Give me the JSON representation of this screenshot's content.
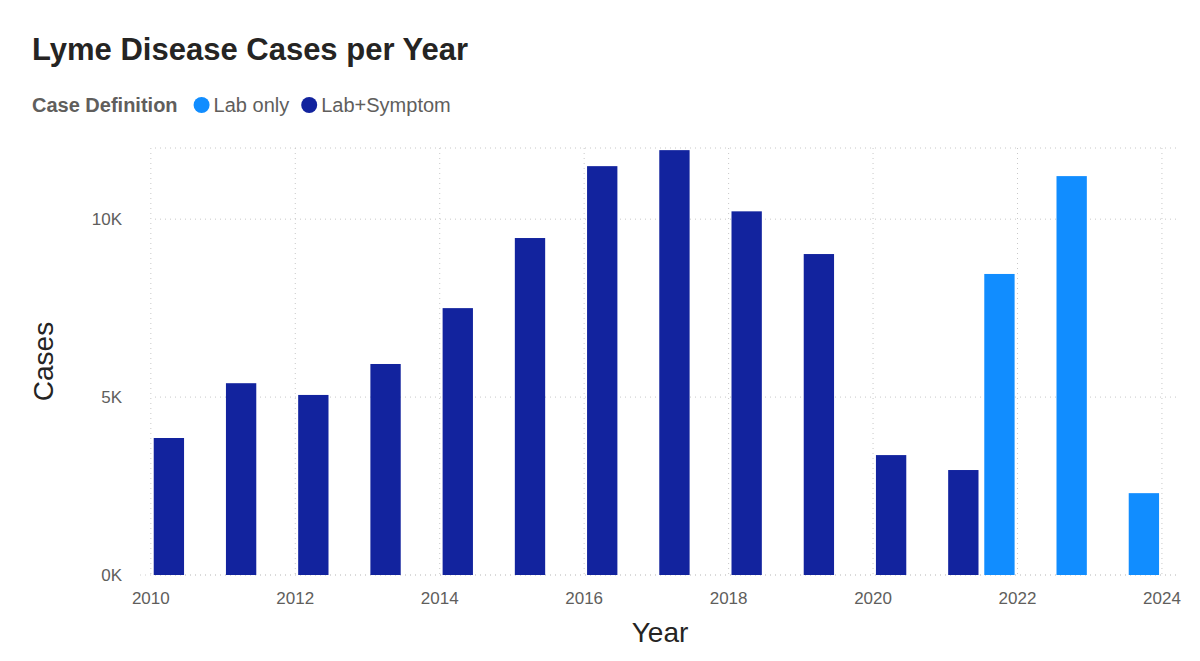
{
  "chart_data": {
    "type": "bar",
    "title": "Lyme Disease Cases per Year",
    "legend_title": "Case Definition",
    "legend": "top-left",
    "x_label": "Year",
    "y_label": "Cases",
    "x": [
      2010,
      2011,
      2012,
      2013,
      2014,
      2015,
      2016,
      2017,
      2018,
      2019,
      2020,
      2021,
      2022,
      2023,
      2024
    ],
    "series": [
      {
        "name": "Lab only",
        "color": "#118dff",
        "values": [
          null,
          null,
          null,
          null,
          null,
          null,
          null,
          null,
          null,
          null,
          null,
          null,
          8460,
          11210,
          2300
        ]
      },
      {
        "name": "Lab+Symptom",
        "color": "#12239e",
        "values": [
          3850,
          5390,
          5060,
          5930,
          7500,
          9470,
          11490,
          11940,
          10220,
          9020,
          3370,
          2950,
          null,
          null,
          null
        ]
      }
    ],
    "xlim": [
      2009.85,
      2024.25
    ],
    "xticks": [
      2010,
      2012,
      2014,
      2016,
      2018,
      2020,
      2022,
      2024
    ],
    "ylim": [
      0,
      12000
    ],
    "yticks": [
      {
        "value": 0,
        "label": "0K"
      },
      {
        "value": 5000,
        "label": "5K"
      },
      {
        "value": 10000,
        "label": "10K"
      }
    ],
    "grid": true
  }
}
